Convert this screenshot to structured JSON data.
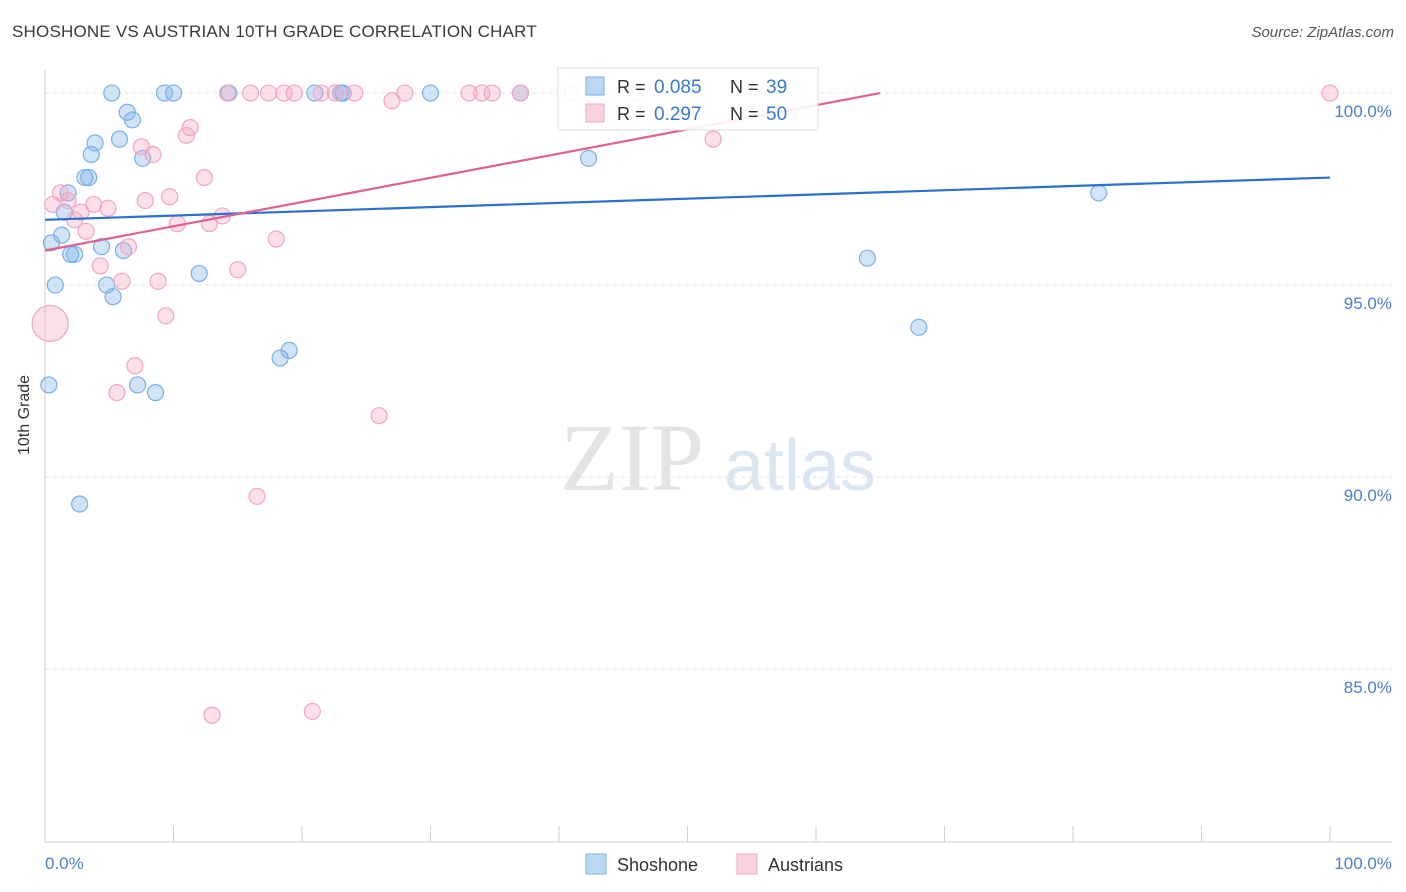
{
  "header": {
    "title": "SHOSHONE VS AUSTRIAN 10TH GRADE CORRELATION CHART",
    "source": "Source: ZipAtlas.com"
  },
  "watermark": {
    "zip": "ZIP",
    "atlas": "atlas"
  },
  "chart_data": {
    "type": "scatter",
    "title": "SHOSHONE VS AUSTRIAN 10TH GRADE CORRELATION CHART",
    "xlabel": "",
    "ylabel": "10th Grade",
    "xlim": [
      0,
      100
    ],
    "ylim": [
      80.5,
      100.6
    ],
    "x_tick_labels": [
      "0.0%",
      "100.0%"
    ],
    "y_ticks": [
      85,
      90,
      95,
      100
    ],
    "y_tick_labels": [
      "85.0%",
      "90.0%",
      "95.0%",
      "100.0%"
    ],
    "grid": true,
    "legend_position": "top-center",
    "series": [
      {
        "name": "Shoshone",
        "color": "#7ab0e8",
        "line_color": "#2b6fd0",
        "R": "0.085",
        "N": "39",
        "trend": {
          "x": [
            0,
            100
          ],
          "y": [
            96.7,
            97.8
          ]
        },
        "points": [
          [
            0.3,
            92.4
          ],
          [
            0.5,
            96.1
          ],
          [
            0.8,
            95.0
          ],
          [
            1.3,
            96.3
          ],
          [
            1.5,
            96.9
          ],
          [
            1.8,
            97.4
          ],
          [
            2.0,
            95.8
          ],
          [
            2.3,
            95.8
          ],
          [
            2.7,
            89.3
          ],
          [
            3.1,
            97.8
          ],
          [
            3.4,
            97.8
          ],
          [
            3.6,
            98.4
          ],
          [
            3.9,
            98.7
          ],
          [
            4.4,
            96.0
          ],
          [
            4.8,
            95.0
          ],
          [
            5.3,
            94.7
          ],
          [
            5.2,
            100.0
          ],
          [
            5.8,
            98.8
          ],
          [
            6.1,
            95.9
          ],
          [
            6.4,
            99.5
          ],
          [
            6.8,
            99.3
          ],
          [
            7.2,
            92.4
          ],
          [
            7.6,
            98.3
          ],
          [
            8.6,
            92.2
          ],
          [
            9.3,
            100.0
          ],
          [
            10.0,
            100.0
          ],
          [
            12.0,
            95.3
          ],
          [
            14.3,
            100.0
          ],
          [
            18.3,
            93.1
          ],
          [
            19.0,
            93.3
          ],
          [
            21.0,
            100.0
          ],
          [
            23.0,
            100.0
          ],
          [
            23.2,
            100.0
          ],
          [
            30.0,
            100.0
          ],
          [
            37.0,
            100.0
          ],
          [
            42.3,
            98.3
          ],
          [
            64.0,
            95.7
          ],
          [
            68.0,
            93.9
          ],
          [
            82.0,
            97.4
          ]
        ]
      },
      {
        "name": "Austrians",
        "color": "#f4a5bf",
        "line_color": "#e0608e",
        "R": "0.297",
        "N": "50",
        "trend": {
          "x": [
            0,
            65
          ],
          "y": [
            95.9,
            100.0
          ]
        },
        "points": [
          [
            0.6,
            97.1
          ],
          [
            1.2,
            97.4
          ],
          [
            1.8,
            97.2
          ],
          [
            2.3,
            96.7
          ],
          [
            2.8,
            96.9
          ],
          [
            3.2,
            96.4
          ],
          [
            3.8,
            97.1
          ],
          [
            4.3,
            95.5
          ],
          [
            4.9,
            97.0
          ],
          [
            5.6,
            92.2
          ],
          [
            6.0,
            95.1
          ],
          [
            6.5,
            96.0
          ],
          [
            7.0,
            92.9
          ],
          [
            7.5,
            98.6
          ],
          [
            7.8,
            97.2
          ],
          [
            8.4,
            98.4
          ],
          [
            8.8,
            95.1
          ],
          [
            9.4,
            94.2
          ],
          [
            9.7,
            97.3
          ],
          [
            10.3,
            96.6
          ],
          [
            11.0,
            98.9
          ],
          [
            11.3,
            99.1
          ],
          [
            12.4,
            97.8
          ],
          [
            12.8,
            96.6
          ],
          [
            13.0,
            83.8
          ],
          [
            13.8,
            96.8
          ],
          [
            14.2,
            100.0
          ],
          [
            15.0,
            95.4
          ],
          [
            16.0,
            100.0
          ],
          [
            16.5,
            89.5
          ],
          [
            17.4,
            100.0
          ],
          [
            18.0,
            96.2
          ],
          [
            18.6,
            100.0
          ],
          [
            19.4,
            100.0
          ],
          [
            20.8,
            83.9
          ],
          [
            21.5,
            100.0
          ],
          [
            22.6,
            100.0
          ],
          [
            24.1,
            100.0
          ],
          [
            26.0,
            91.6
          ],
          [
            27.0,
            99.8
          ],
          [
            28.0,
            100.0
          ],
          [
            33.0,
            100.0
          ],
          [
            34.0,
            100.0
          ],
          [
            34.8,
            100.0
          ],
          [
            37.0,
            100.0
          ],
          [
            41.0,
            100.0
          ],
          [
            46.0,
            100.0
          ],
          [
            52.0,
            98.8
          ],
          [
            100.0,
            100.0
          ],
          [
            0.4,
            94.0
          ]
        ]
      }
    ]
  },
  "legend": {
    "r_label": "R =",
    "n_label": "N =",
    "items": [
      {
        "name": "Shoshone",
        "R": "0.085",
        "N": "39"
      },
      {
        "name": "Austrians",
        "R": "0.297",
        "N": "50"
      }
    ]
  }
}
